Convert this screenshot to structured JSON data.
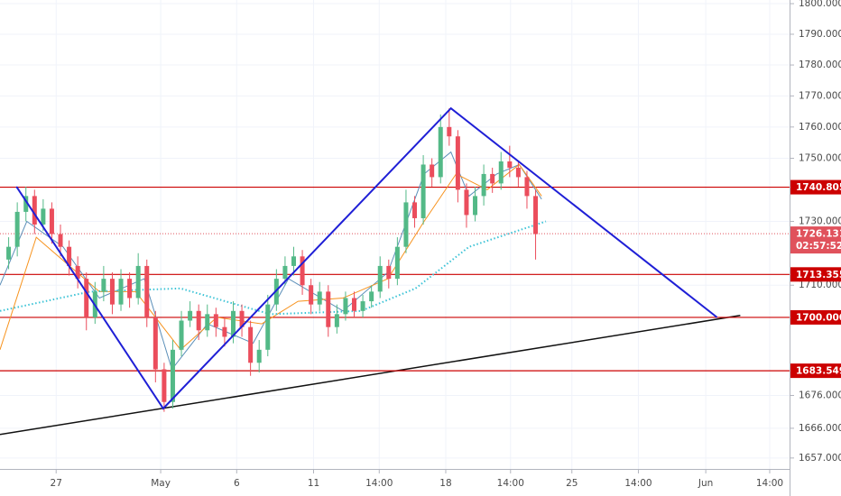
{
  "chart_data": {
    "type": "candlestick",
    "log_scale": true,
    "grid": true,
    "xlim": [
      0,
      91.4
    ],
    "ylim": [
      1653.7,
      1801.2
    ],
    "xticks": [
      {
        "value": 6.5,
        "label": "27"
      },
      {
        "value": 18.6,
        "label": "May"
      },
      {
        "value": 27.4,
        "label": "6"
      },
      {
        "value": 36.3,
        "label": "11"
      },
      {
        "value": 43.9,
        "label": "14:00"
      },
      {
        "value": 51.6,
        "label": "18"
      },
      {
        "value": 59.1,
        "label": "14:00"
      },
      {
        "value": 66.2,
        "label": "25"
      },
      {
        "value": 73.9,
        "label": "14:00"
      },
      {
        "value": 81.7,
        "label": "Jun"
      },
      {
        "value": 89.1,
        "label": "14:00"
      }
    ],
    "yticks": [
      {
        "value": 1657,
        "label": "1657.000"
      },
      {
        "value": 1666,
        "label": "1666.000"
      },
      {
        "value": 1676,
        "label": "1676.000"
      },
      {
        "value": 1710,
        "label": "1710.000"
      },
      {
        "value": 1730,
        "label": "1730.000"
      },
      {
        "value": 1750,
        "label": "1750.000"
      },
      {
        "value": 1760,
        "label": "1760.000"
      },
      {
        "value": 1770,
        "label": "1770.000"
      },
      {
        "value": 1780,
        "label": "1780.000"
      },
      {
        "value": 1790,
        "label": "1790.000"
      },
      {
        "value": 1800,
        "label": "1800.000"
      }
    ],
    "up_color": "#53b987",
    "down_color": "#eb4d5c",
    "open": [
      1718,
      1722,
      1733,
      1738,
      1729,
      1734,
      1726,
      1722,
      1716,
      1712,
      1700,
      1708,
      1712,
      1704,
      1712,
      1706,
      1716,
      1700,
      1684,
      1674,
      1690,
      1699,
      1702,
      1696,
      1701,
      1697,
      1694,
      1702,
      1697,
      1686,
      1690,
      1704,
      1712,
      1716,
      1719,
      1710,
      1704,
      1708,
      1697,
      1701,
      1706,
      1702,
      1705,
      1708,
      1716,
      1712,
      1722,
      1736,
      1731,
      1748,
      1744,
      1760,
      1757,
      1740,
      1732,
      1738,
      1745,
      1742,
      1749,
      1747,
      1744,
      1738
    ],
    "high": [
      1725,
      1736,
      1741,
      1740,
      1737,
      1736,
      1729,
      1724,
      1719,
      1714,
      1711,
      1716,
      1714,
      1715,
      1714,
      1720,
      1718,
      1702,
      1686,
      1693,
      1702,
      1705,
      1704,
      1704,
      1703,
      1700,
      1705,
      1704,
      1699,
      1693,
      1707,
      1715,
      1719,
      1722,
      1721,
      1712,
      1711,
      1710,
      1704,
      1708,
      1708,
      1707,
      1710,
      1719,
      1718,
      1725,
      1740,
      1738,
      1751,
      1750,
      1764,
      1766,
      1759,
      1742,
      1741,
      1748,
      1747,
      1752,
      1754,
      1749,
      1746,
      1740
    ],
    "low": [
      1715,
      1719,
      1730,
      1726,
      1727,
      1723,
      1719,
      1713,
      1709,
      1696,
      1698,
      1705,
      1701,
      1702,
      1703,
      1704,
      1697,
      1680,
      1671,
      1672,
      1688,
      1697,
      1693,
      1694,
      1694,
      1691,
      1692,
      1694,
      1682,
      1683,
      1688,
      1702,
      1710,
      1713,
      1707,
      1701,
      1702,
      1694,
      1695,
      1699,
      1700,
      1700,
      1703,
      1706,
      1709,
      1710,
      1720,
      1728,
      1729,
      1741,
      1742,
      1754,
      1736,
      1728,
      1730,
      1735,
      1739,
      1740,
      1744,
      1741,
      1734,
      1718
    ],
    "close": [
      1722,
      1733,
      1738,
      1729,
      1734,
      1726,
      1722,
      1716,
      1712,
      1700,
      1708,
      1712,
      1704,
      1712,
      1706,
      1716,
      1700,
      1684,
      1674,
      1690,
      1699,
      1702,
      1696,
      1701,
      1697,
      1694,
      1702,
      1697,
      1686,
      1690,
      1704,
      1712,
      1716,
      1719,
      1710,
      1704,
      1708,
      1697,
      1701,
      1706,
      1702,
      1705,
      1708,
      1716,
      1712,
      1722,
      1736,
      1731,
      1748,
      1744,
      1760,
      1757,
      1740,
      1732,
      1738,
      1745,
      1742,
      1749,
      1747,
      1744,
      1738,
      1726
    ],
    "series": [
      {
        "color": "#5b8fb9",
        "style": "solid",
        "x": [
          0,
          3.1,
          7.3,
          11.5,
          16.7,
          19.9,
          24,
          29.3,
          33.4,
          39.7,
          44.9,
          49.1,
          52.2,
          54.3,
          57.5,
          60.1,
          62.7
        ],
        "values": [
          1710,
          1730,
          1722,
          1706,
          1712,
          1684,
          1698,
          1692,
          1712,
          1702,
          1714,
          1745,
          1752,
          1738,
          1745,
          1748,
          1737
        ]
      },
      {
        "color": "#f7931e",
        "style": "solid",
        "x": [
          0,
          4.2,
          11.5,
          15.7,
          20.9,
          25.1,
          30.3,
          34.5,
          39.7,
          44.9,
          49.1,
          52.8,
          56.4,
          60.1,
          62.7
        ],
        "values": [
          1690,
          1725,
          1708,
          1708,
          1690,
          1700,
          1698,
          1705,
          1706,
          1712,
          1730,
          1745,
          1740,
          1748,
          1738
        ]
      },
      {
        "color": "#3cc3d6",
        "style": "dotted",
        "x": [
          0,
          10.4,
          20.9,
          31.3,
          41.8,
          48.1,
          54.3,
          63.2
        ],
        "values": [
          1702,
          1708,
          1709,
          1701,
          1702,
          1709,
          1722,
          1730
        ]
      }
    ],
    "pattern": {
      "color": "#1f1fd6",
      "x": [
        1.9,
        18.9,
        52.2,
        83
      ],
      "values": [
        1741,
        1672,
        1766,
        1700
      ]
    },
    "trendline": {
      "color": "#111111",
      "x": [
        0,
        85.7
      ],
      "values": [
        1664.1,
        1700.6
      ]
    },
    "levels": {
      "color": "#cc0000",
      "values": [
        1740.805,
        1713.355,
        1700,
        1683.549
      ],
      "value_labels": [
        "1740.805",
        "1713.355",
        "1700.000",
        "1683.549"
      ]
    },
    "last_price": {
      "color": "#e0525c",
      "value": 1726.131,
      "countdown": "02:57:52"
    }
  }
}
